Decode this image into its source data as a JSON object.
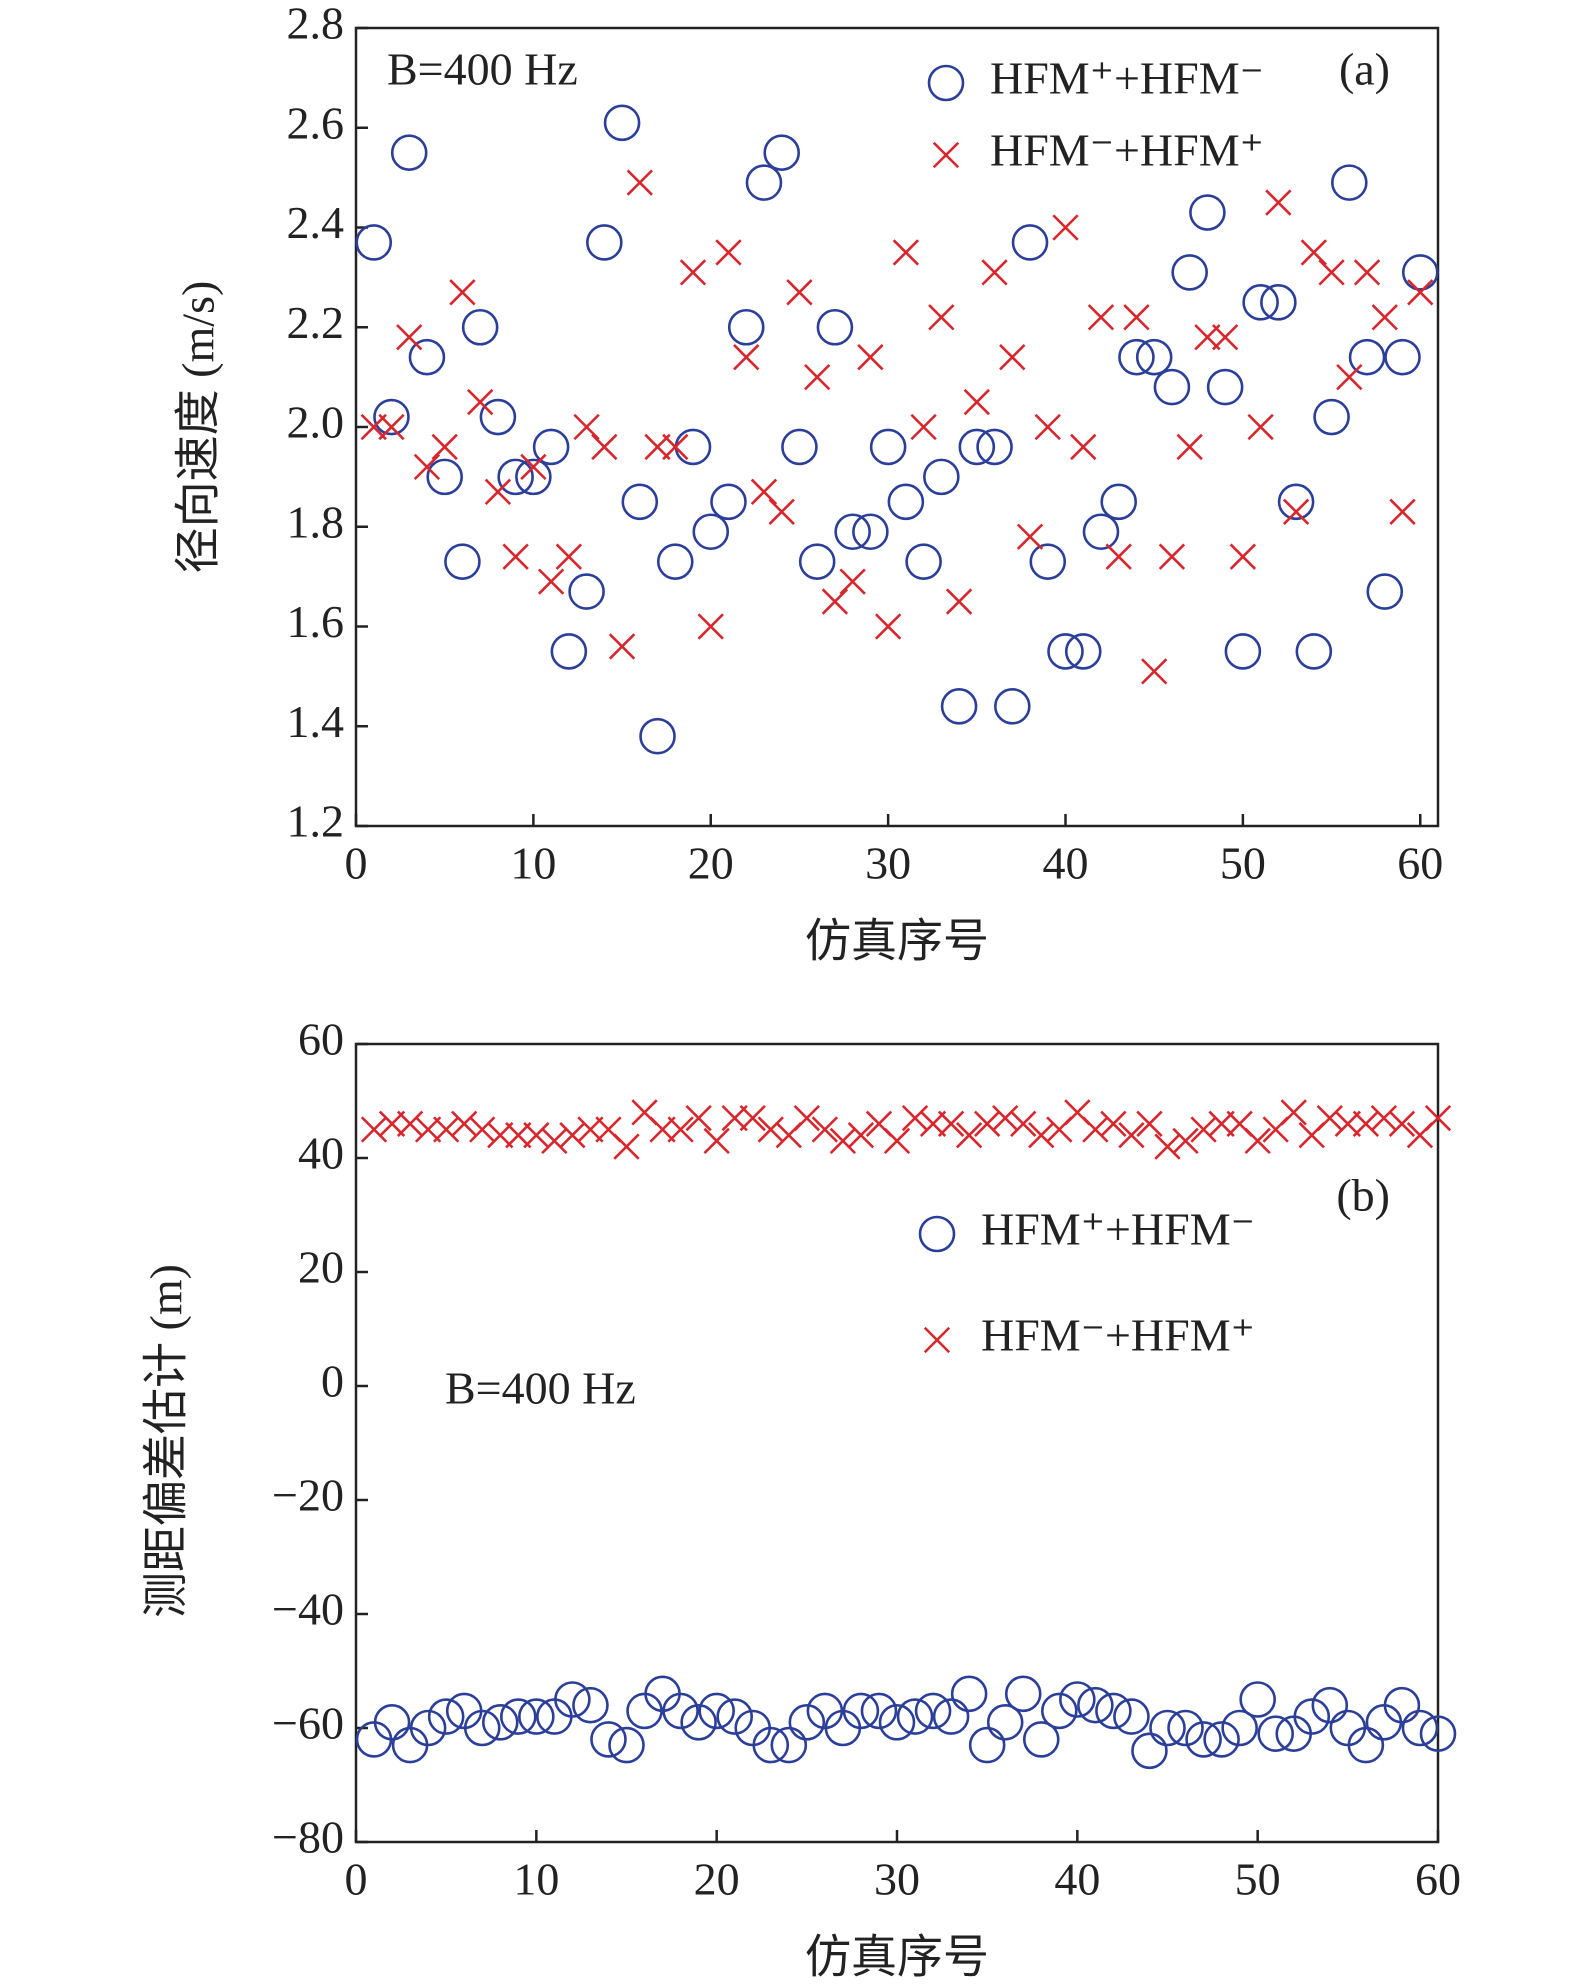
{
  "chart_data": [
    {
      "type": "scatter",
      "ylabel": "径向速度 (m/s)",
      "xlabel": "仿真序号",
      "annotation": "B=400 Hz",
      "panel_label": "(a)",
      "xlim": [
        0,
        61
      ],
      "xticks": [
        0,
        10,
        20,
        30,
        40,
        50,
        60
      ],
      "ylim": [
        1.2,
        2.8
      ],
      "yticks": [
        1.2,
        1.4,
        1.6,
        1.8,
        {
          "value": 2,
          "label": "2.0"
        },
        2.2,
        2.4,
        2.6,
        2.8
      ],
      "x": [
        1,
        2,
        3,
        4,
        5,
        6,
        7,
        8,
        9,
        10,
        11,
        12,
        13,
        14,
        15,
        16,
        17,
        18,
        19,
        20,
        21,
        22,
        23,
        24,
        25,
        26,
        27,
        28,
        29,
        30,
        31,
        32,
        33,
        34,
        35,
        36,
        37,
        38,
        39,
        40,
        41,
        42,
        43,
        44,
        45,
        46,
        47,
        48,
        49,
        50,
        51,
        52,
        53,
        54,
        55,
        56,
        57,
        58,
        59,
        60
      ],
      "series": [
        {
          "name": "HFM⁺+HFM⁻",
          "color": "#2b3f9a",
          "marker": "o",
          "values": [
            2.37,
            2.02,
            2.55,
            2.14,
            1.9,
            1.73,
            2.2,
            2.02,
            1.9,
            1.9,
            1.96,
            1.55,
            1.67,
            2.37,
            2.61,
            1.85,
            1.38,
            1.73,
            1.96,
            1.79,
            1.85,
            2.2,
            2.49,
            2.55,
            1.96,
            1.73,
            2.2,
            1.79,
            1.79,
            1.96,
            1.85,
            1.73,
            1.9,
            1.44,
            1.96,
            1.96,
            1.44,
            2.37,
            1.73,
            1.55,
            1.55,
            1.79,
            1.85,
            2.14,
            2.14,
            2.08,
            2.31,
            2.43,
            2.08,
            1.55,
            2.25,
            2.25,
            1.85,
            1.55,
            2.02,
            2.49,
            2.14,
            1.67,
            2.14,
            2.31
          ]
        },
        {
          "name": "HFM⁻+HFM⁺",
          "color": "#d9262c",
          "marker": "x",
          "values": [
            2.0,
            2.0,
            2.18,
            1.92,
            1.96,
            2.27,
            2.05,
            1.87,
            1.74,
            1.92,
            1.69,
            1.74,
            2.0,
            1.96,
            1.56,
            2.49,
            1.96,
            1.96,
            2.31,
            1.6,
            2.35,
            2.14,
            1.87,
            1.83,
            2.27,
            2.1,
            1.65,
            1.69,
            2.14,
            1.6,
            2.35,
            2.0,
            2.22,
            1.65,
            2.05,
            2.31,
            2.14,
            1.78,
            2.0,
            2.4,
            1.96,
            2.22,
            1.74,
            2.22,
            1.51,
            1.74,
            1.96,
            2.18,
            2.18,
            1.74,
            2.0,
            2.45,
            1.83,
            2.35,
            2.31,
            2.1,
            2.31,
            2.22,
            1.83,
            2.27
          ]
        }
      ]
    },
    {
      "type": "scatter",
      "ylabel": "测距偏差估计 (m)",
      "xlabel": "仿真序号",
      "annotation": "B=400 Hz",
      "panel_label": "(b)",
      "xlim": [
        0,
        60
      ],
      "xticks": [
        0,
        10,
        20,
        30,
        40,
        50,
        60
      ],
      "ylim": [
        -80,
        60
      ],
      "yticks": [
        {
          "value": -80,
          "label": "−80"
        },
        {
          "value": -60,
          "label": "−60"
        },
        {
          "value": -40,
          "label": "−40"
        },
        {
          "value": -20,
          "label": "−20"
        },
        0,
        20,
        40,
        60
      ],
      "x": [
        1,
        2,
        3,
        4,
        5,
        6,
        7,
        8,
        9,
        10,
        11,
        12,
        13,
        14,
        15,
        16,
        17,
        18,
        19,
        20,
        21,
        22,
        23,
        24,
        25,
        26,
        27,
        28,
        29,
        30,
        31,
        32,
        33,
        34,
        35,
        36,
        37,
        38,
        39,
        40,
        41,
        42,
        43,
        44,
        45,
        46,
        47,
        48,
        49,
        50,
        51,
        52,
        53,
        54,
        55,
        56,
        57,
        58,
        59,
        60
      ],
      "series": [
        {
          "name": "HFM⁺+HFM⁻",
          "color": "#2b3f9a",
          "marker": "o",
          "values": [
            -62,
            -59,
            -63,
            -60,
            -58,
            -57,
            -60,
            -59,
            -58,
            -58,
            -58,
            -55,
            -56,
            -62,
            -63,
            -57,
            -54,
            -57,
            -59,
            -57,
            -58,
            -60,
            -63,
            -63,
            -59,
            -57,
            -60,
            -57,
            -57,
            -59,
            -58,
            -57,
            -58,
            -54,
            -63,
            -59,
            -54,
            -62,
            -57,
            -55,
            -56,
            -57,
            -58,
            -64,
            -60,
            -60,
            -62,
            -62,
            -60,
            -55,
            -61,
            -61,
            -58,
            -56,
            -60,
            -63,
            -59,
            -56,
            -60,
            -61
          ]
        },
        {
          "name": "HFM⁻+HFM⁺",
          "color": "#d9262c",
          "marker": "x",
          "values": [
            45,
            46,
            46,
            45,
            45,
            46,
            45,
            44,
            44,
            44,
            43,
            44,
            45,
            45,
            42,
            48,
            45,
            45,
            47,
            43,
            47,
            47,
            45,
            44,
            47,
            45,
            43,
            44,
            46,
            43,
            47,
            46,
            46,
            44,
            46,
            47,
            46,
            44,
            45,
            48,
            45,
            46,
            44,
            46,
            42,
            43,
            45,
            46,
            46,
            43,
            45,
            48,
            44,
            47,
            46,
            46,
            47,
            46,
            44,
            47
          ]
        }
      ]
    }
  ]
}
